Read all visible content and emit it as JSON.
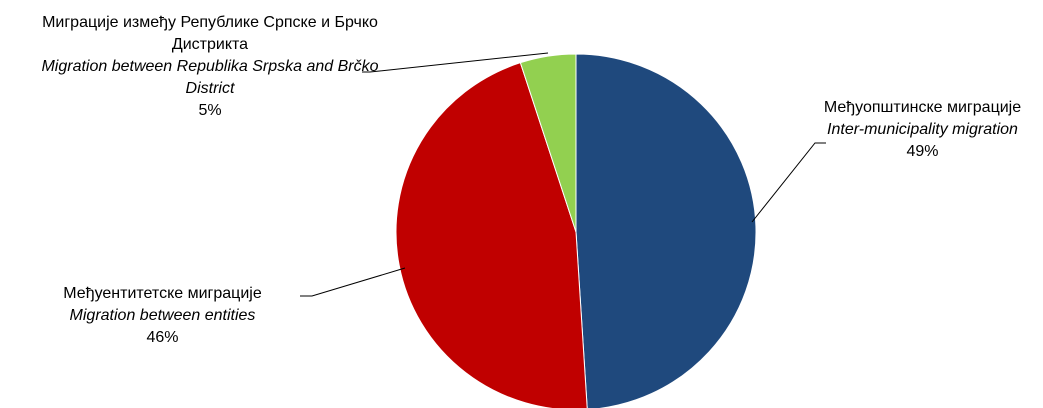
{
  "chart_data": {
    "type": "pie",
    "slices": [
      {
        "label_sr": "Међуопштинске миграције",
        "label_en": "Inter-municipality migration",
        "value": 49,
        "value_label": "49%",
        "color": "#1f497d"
      },
      {
        "label_sr": "Међуентитетске миграције",
        "label_en": "Migration between entities",
        "value": 46,
        "value_label": "46%",
        "color": "#c00000"
      },
      {
        "label_sr": "Миграције између Републике Српске и Брчко Дистрикта",
        "label_en": "Migration between Republika Srpska and Brčko District",
        "value": 5,
        "value_label": "5%",
        "color": "#92d050"
      }
    ]
  },
  "labels": {
    "brcko": {
      "sr_line1": "Миграције између Републике Српске и Брчко",
      "sr_line2": "Дистрикта",
      "en_line1": "Migration between Republika Srpska and Brčko",
      "en_line2": "District",
      "pct": "5%"
    },
    "inter": {
      "sr": "Међуопштинске миграције",
      "en": "Inter-municipality migration",
      "pct": "49%"
    },
    "entities": {
      "sr": "Међуентитетске миграције",
      "en": "Migration between entities",
      "pct": "46%"
    }
  }
}
